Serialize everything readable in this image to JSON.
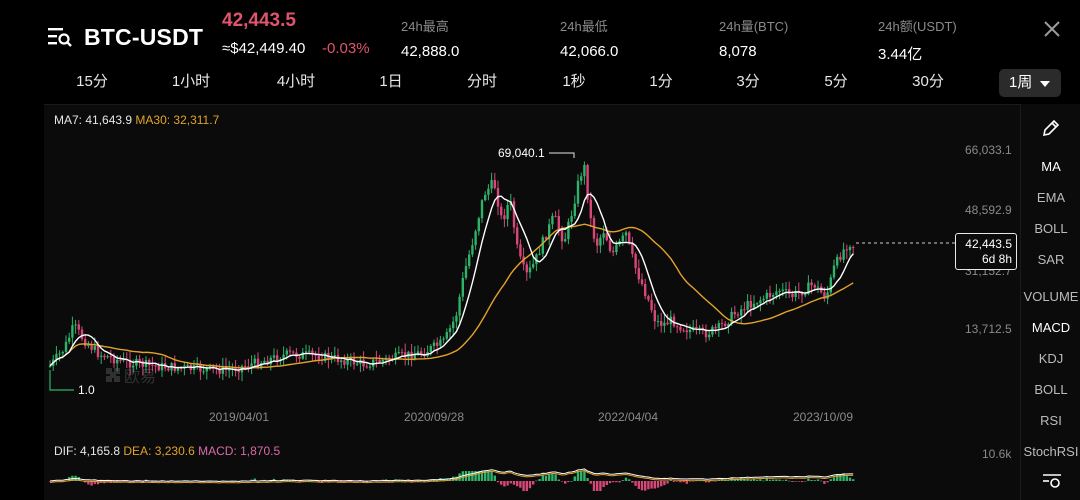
{
  "header": {
    "pair": "BTC-USDT",
    "price": "42,443.5",
    "price_usd": "≈$42,449.40",
    "change": "-0.03%",
    "stats": [
      {
        "label": "24h最高",
        "value": "42,888.0"
      },
      {
        "label": "24h最低",
        "value": "42,066.0"
      },
      {
        "label": "24h量(BTC)",
        "value": "8,078"
      },
      {
        "label": "24h额(USDT)",
        "value": "3.44亿"
      }
    ]
  },
  "tabs": [
    "15分",
    "1小时",
    "4小时",
    "1日",
    "分时",
    "1秒",
    "1分",
    "3分",
    "5分",
    "30分"
  ],
  "active_tab": "1周",
  "indicators": {
    "ma7": "MA7: 41,643.9",
    "ma30": "MA30: 32,311.7",
    "dif": "DIF: 4,165.8",
    "dea": "DEA: 3,230.6",
    "macd": "MACD: 1,870.5"
  },
  "price_axis": [
    "66,033.1",
    "48,592.9",
    "31,152.7",
    "13,712.5"
  ],
  "macd_axis": "10.6k",
  "date_axis": [
    "2019/04/01",
    "2020/09/28",
    "2022/04/04",
    "2023/10/09"
  ],
  "annotations": {
    "high": "69,040.1",
    "low": "1.0"
  },
  "current_price_box": {
    "price": "42,443.5",
    "countdown": "6d 8h"
  },
  "watermark": "欧易",
  "sidebar": [
    "MA",
    "EMA",
    "BOLL",
    "SAR",
    "VOLUME",
    "MACD",
    "KDJ",
    "BOLL",
    "RSI",
    "StochRSI"
  ],
  "colors": {
    "up": "#2fb26a",
    "down": "#d8477a",
    "ma7": "#ffffff",
    "ma30": "#e3a22b",
    "accent_red": "#e0546c"
  }
}
